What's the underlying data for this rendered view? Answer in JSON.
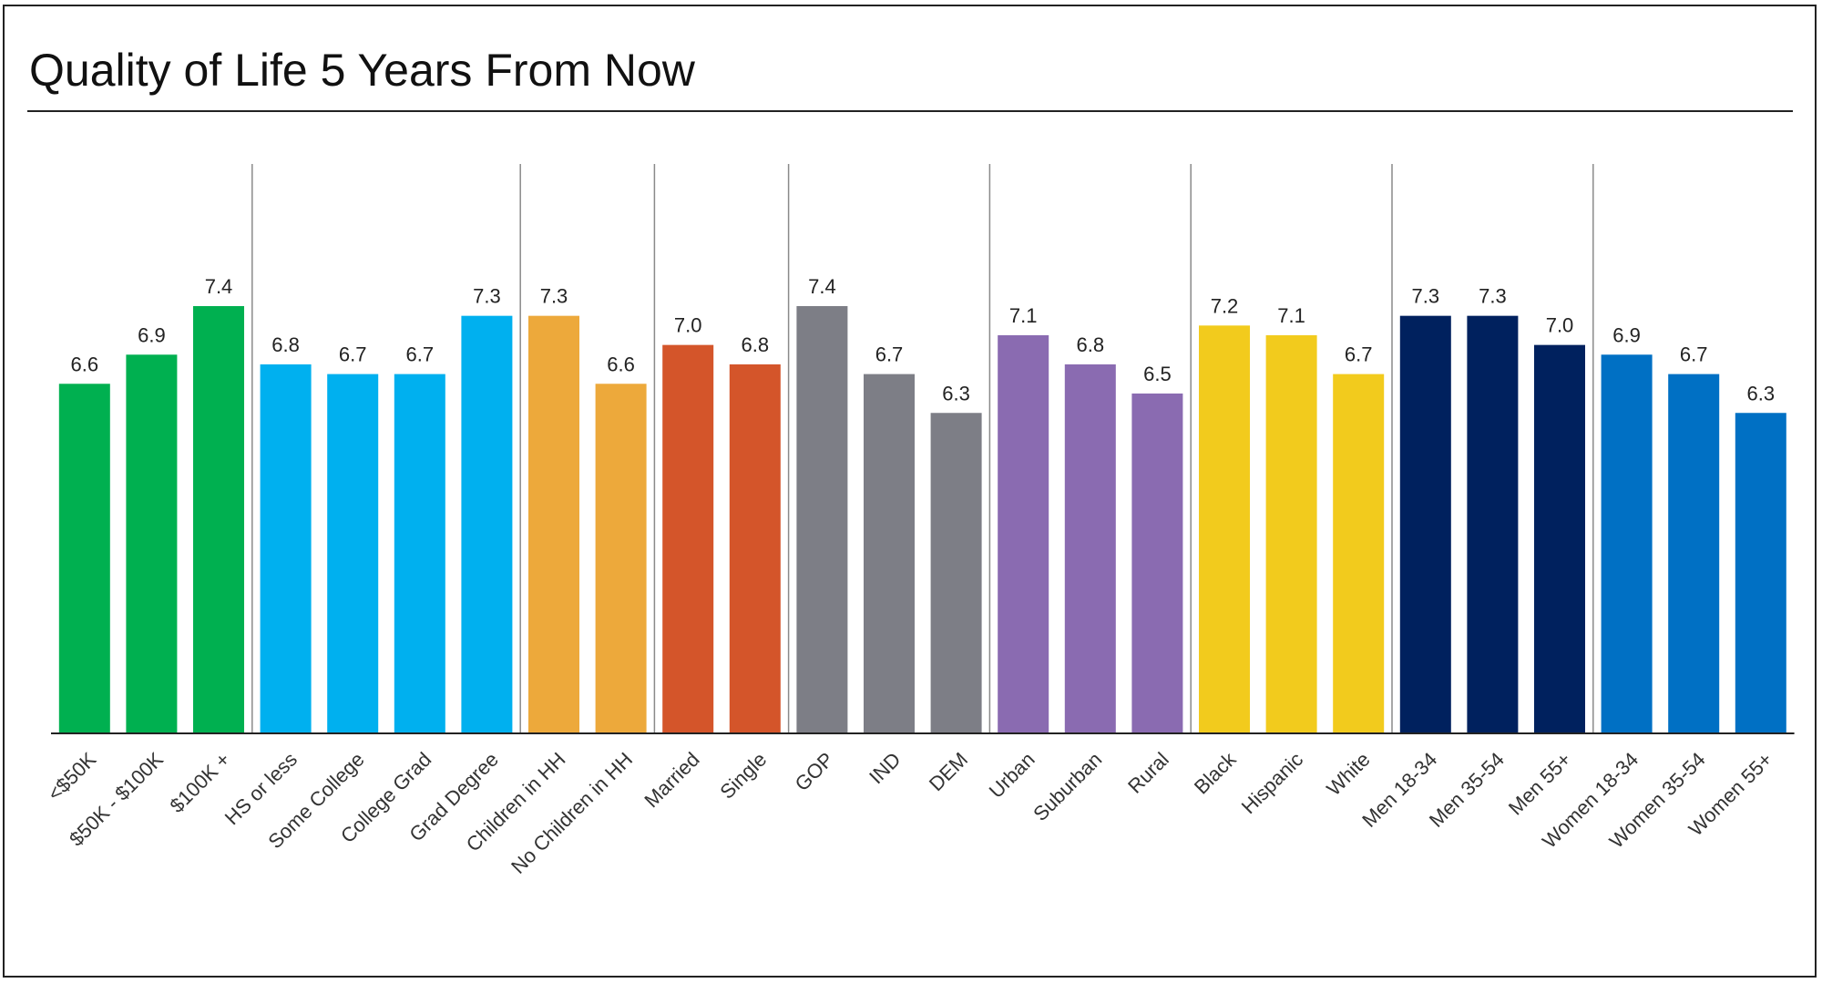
{
  "title": "Quality of Life 5 Years From Now",
  "chart_data": {
    "type": "bar",
    "title": "Quality of Life 5 Years From Now",
    "xlabel": "",
    "ylabel": "",
    "ylim": [
      0,
      7.4
    ],
    "grid": false,
    "legend": "none",
    "groups": [
      {
        "color": "#00B050",
        "categories": [
          "<$50K",
          "$50K - $100K",
          "$100K +"
        ],
        "values": [
          6.6,
          6.9,
          7.4
        ]
      },
      {
        "color": "#00B0EF",
        "categories": [
          "HS or less",
          "Some College",
          "College Grad",
          "Grad Degree"
        ],
        "values": [
          6.8,
          6.7,
          6.7,
          7.3
        ]
      },
      {
        "color": "#EDA93B",
        "categories": [
          "Children in HH",
          "No Children in HH"
        ],
        "values": [
          7.3,
          6.6
        ]
      },
      {
        "color": "#D4552A",
        "categories": [
          "Married",
          "Single"
        ],
        "values": [
          7.0,
          6.8
        ]
      },
      {
        "color": "#7D7E86",
        "categories": [
          "GOP",
          "IND",
          "DEM"
        ],
        "values": [
          7.4,
          6.7,
          6.3
        ]
      },
      {
        "color": "#8A6BB1",
        "categories": [
          "Urban",
          "Suburban",
          "Rural"
        ],
        "values": [
          7.1,
          6.8,
          6.5
        ]
      },
      {
        "color": "#F2CB1D",
        "categories": [
          "Black",
          "Hispanic",
          "White"
        ],
        "values": [
          7.2,
          7.1,
          6.7
        ]
      },
      {
        "color": "#00215E",
        "categories": [
          "Men 18-34",
          "Men 35-54",
          "Men 55+"
        ],
        "values": [
          7.3,
          7.3,
          7.0
        ]
      },
      {
        "color": "#0070C4",
        "categories": [
          "Women 18-34",
          "Women 35-54",
          "Women 55+"
        ],
        "values": [
          6.9,
          6.7,
          6.3
        ]
      }
    ]
  }
}
